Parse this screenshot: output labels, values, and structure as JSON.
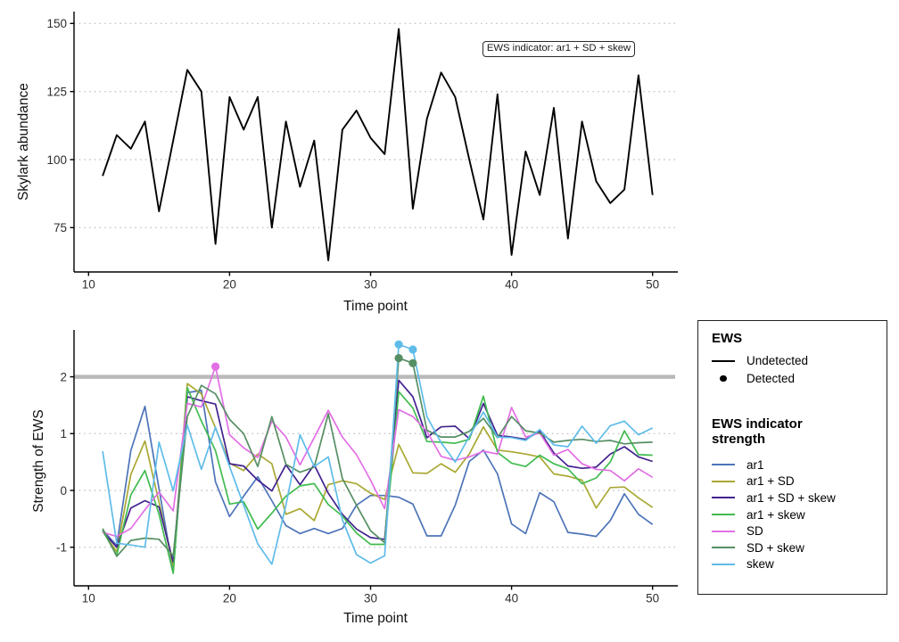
{
  "chart_data": [
    {
      "type": "line",
      "panel": "top",
      "xlabel": "Time point",
      "ylabel": "Skylark abundance",
      "annotation": "EWS indicator: ar1 + SD + skew",
      "x_ticks": [
        10,
        20,
        30,
        40,
        50
      ],
      "y_ticks": [
        75,
        100,
        125,
        150
      ],
      "xlim": [
        9,
        52
      ],
      "ylim": [
        59,
        154
      ],
      "grid": "horizontal-dotted",
      "x": [
        11,
        12,
        13,
        14,
        15,
        16,
        17,
        18,
        19,
        20,
        21,
        22,
        23,
        24,
        25,
        26,
        27,
        28,
        29,
        30,
        31,
        32,
        33,
        34,
        35,
        36,
        37,
        38,
        39,
        40,
        41,
        42,
        43,
        44,
        45,
        46,
        47,
        48,
        49,
        50
      ],
      "series": [
        {
          "name": "Skylark abundance",
          "color": "#000000",
          "values": [
            94,
            109,
            104,
            114,
            81,
            107,
            133,
            125,
            69,
            123,
            111,
            123,
            75,
            114,
            90,
            107,
            63,
            111,
            118,
            108,
            102,
            148,
            82,
            115,
            132,
            123,
            100,
            78,
            124,
            65,
            103,
            87,
            119,
            71,
            114,
            92,
            84,
            89,
            131,
            87
          ]
        }
      ]
    },
    {
      "type": "line",
      "panel": "bottom",
      "xlabel": "Time point",
      "ylabel": "Strength of EWS",
      "x_ticks": [
        10,
        20,
        30,
        40,
        50
      ],
      "y_ticks": [
        -1,
        0,
        1,
        2
      ],
      "xlim": [
        9,
        52
      ],
      "ylim": [
        -1.75,
        2.9
      ],
      "grid": "horizontal-dotted",
      "threshold": {
        "value": 2,
        "color": "#b9b9b9"
      },
      "x": [
        11,
        12,
        13,
        14,
        15,
        16,
        17,
        18,
        19,
        20,
        21,
        22,
        23,
        24,
        25,
        26,
        27,
        28,
        29,
        30,
        31,
        32,
        33,
        34,
        35,
        36,
        37,
        38,
        39,
        40,
        41,
        42,
        43,
        44,
        45,
        46,
        47,
        48,
        49,
        50
      ],
      "series": [
        {
          "name": "ar1",
          "color": "#4d74b8",
          "values": [
            -0.7,
            -0.97,
            0.7,
            1.48,
            0.03,
            -1.42,
            1.72,
            1.76,
            0.15,
            -0.46,
            -0.1,
            0.24,
            -0.18,
            -0.62,
            -0.76,
            -0.67,
            -0.76,
            -0.67,
            -0.26,
            -0.09,
            -0.09,
            -0.12,
            -0.24,
            -0.8,
            -0.8,
            -0.26,
            0.51,
            0.71,
            0.29,
            -0.59,
            -0.76,
            -0.04,
            -0.2,
            -0.74,
            -0.77,
            -0.81,
            -0.53,
            -0.06,
            -0.42,
            -0.6
          ]
        },
        {
          "name": "ar1 + SD",
          "color": "#aaa833",
          "values": [
            -0.72,
            -1.08,
            0.28,
            0.87,
            -0.21,
            -1.33,
            1.88,
            1.7,
            1.1,
            0.48,
            0.35,
            0.64,
            0.47,
            -0.42,
            -0.32,
            -0.53,
            0.1,
            0.17,
            0.12,
            -0.05,
            -0.16,
            0.81,
            0.31,
            0.3,
            0.47,
            0.32,
            0.64,
            1.12,
            0.71,
            0.68,
            0.64,
            0.59,
            0.29,
            0.25,
            0.18,
            -0.31,
            0.05,
            0.06,
            -0.13,
            -0.3
          ]
        },
        {
          "name": "ar1 + SD + skew",
          "color": "#42228f",
          "values": [
            -0.72,
            -1.0,
            -0.31,
            -0.18,
            -0.29,
            -1.26,
            1.65,
            1.58,
            1.52,
            0.47,
            0.43,
            0.18,
            -0.01,
            0.45,
            0.1,
            0.45,
            -0.05,
            -0.42,
            -0.68,
            -0.83,
            -0.86,
            1.94,
            1.65,
            0.93,
            1.12,
            1.13,
            0.91,
            1.53,
            0.97,
            0.94,
            0.9,
            1.04,
            0.66,
            0.43,
            0.39,
            0.41,
            0.64,
            0.77,
            0.59,
            0.51
          ]
        },
        {
          "name": "ar1 + skew",
          "color": "#41bb50",
          "values": [
            -0.71,
            -1.14,
            -0.08,
            0.35,
            -0.42,
            -1.46,
            1.81,
            1.22,
            0.7,
            -0.24,
            -0.2,
            -0.68,
            -0.4,
            -0.1,
            0.08,
            0.12,
            -0.25,
            -0.45,
            -0.75,
            -0.95,
            -0.95,
            1.74,
            1.45,
            0.86,
            0.85,
            0.83,
            0.9,
            1.66,
            0.67,
            0.48,
            0.42,
            0.62,
            0.47,
            0.38,
            0.12,
            0.22,
            0.5,
            1.05,
            0.63,
            0.62
          ]
        },
        {
          "name": "SD",
          "color": "#e26fe5",
          "values": [
            -0.74,
            -0.81,
            -0.67,
            -0.34,
            -0.03,
            -0.36,
            1.53,
            1.47,
            2.18,
            0.98,
            0.75,
            0.58,
            1.22,
            0.94,
            0.45,
            0.93,
            1.41,
            0.94,
            0.63,
            0.18,
            -0.32,
            1.42,
            1.3,
            1.04,
            0.6,
            0.53,
            0.59,
            0.69,
            0.64,
            1.46,
            0.94,
            1.01,
            0.62,
            0.72,
            0.47,
            0.37,
            0.35,
            0.17,
            0.38,
            0.23
          ]
        },
        {
          "name": "SD + skew",
          "color": "#568f63",
          "values": [
            -0.67,
            -1.16,
            -0.88,
            -0.84,
            -0.86,
            -1.15,
            1.3,
            1.85,
            1.7,
            1.25,
            1.0,
            0.42,
            1.3,
            0.46,
            0.32,
            0.41,
            1.35,
            0.21,
            -0.26,
            -0.71,
            -0.92,
            2.33,
            2.24,
            1.06,
            0.94,
            0.94,
            1.04,
            1.27,
            0.93,
            1.3,
            1.05,
            1.01,
            0.85,
            0.88,
            0.9,
            0.86,
            0.88,
            0.82,
            0.84,
            0.85
          ]
        },
        {
          "name": "skew",
          "color": "#5fbce9",
          "values": [
            0.69,
            -0.93,
            -0.96,
            -1.0,
            0.85,
            -0.01,
            1.15,
            0.37,
            1.11,
            0.42,
            -0.26,
            -0.94,
            -1.3,
            -0.26,
            0.98,
            0.42,
            0.59,
            -0.52,
            -1.13,
            -1.28,
            -1.15,
            2.57,
            2.48,
            1.3,
            0.84,
            0.5,
            0.95,
            1.38,
            0.94,
            0.93,
            0.88,
            1.07,
            0.8,
            0.77,
            1.13,
            0.83,
            1.14,
            1.22,
            0.98,
            1.1
          ]
        }
      ],
      "detected_points": [
        {
          "series": "SD",
          "t": 19,
          "value": 2.18
        },
        {
          "series": "SD + skew",
          "t": 32,
          "value": 2.33
        },
        {
          "series": "SD + skew",
          "t": 33,
          "value": 2.24
        },
        {
          "series": "skew",
          "t": 32,
          "value": 2.57
        },
        {
          "series": "skew",
          "t": 33,
          "value": 2.48
        }
      ]
    }
  ],
  "legend": {
    "ews": {
      "title": "EWS",
      "items": [
        {
          "label": "Undetected",
          "symbol": "line",
          "color": "#000000"
        },
        {
          "label": "Detected",
          "symbol": "point",
          "color": "#000000"
        }
      ]
    },
    "indicator": {
      "title_line1": "EWS indicator",
      "title_line2": "strength",
      "items": [
        {
          "label": "ar1",
          "symbol": "line",
          "color": "#4d74b8"
        },
        {
          "label": "ar1 + SD",
          "symbol": "line",
          "color": "#aaa833"
        },
        {
          "label": "ar1 + SD + skew",
          "symbol": "line",
          "color": "#42228f"
        },
        {
          "label": "ar1 + skew",
          "symbol": "line",
          "color": "#41bb50"
        },
        {
          "label": "SD",
          "symbol": "line",
          "color": "#e26fe5"
        },
        {
          "label": "SD + skew",
          "symbol": "line",
          "color": "#568f63"
        },
        {
          "label": "skew",
          "symbol": "line",
          "color": "#5fbce9"
        }
      ]
    }
  }
}
